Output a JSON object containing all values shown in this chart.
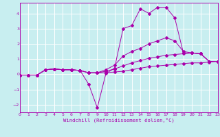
{
  "xlabel": "Windchill (Refroidissement éolien,°C)",
  "bg_color": "#c8eef0",
  "grid_color": "#ffffff",
  "line_color": "#aa00aa",
  "text_color": "#aa00aa",
  "xlim": [
    0,
    23
  ],
  "ylim": [
    -2.5,
    4.7
  ],
  "xticks": [
    0,
    1,
    2,
    3,
    4,
    5,
    6,
    7,
    8,
    9,
    10,
    11,
    12,
    13,
    14,
    15,
    16,
    17,
    18,
    19,
    20,
    21,
    22,
    23
  ],
  "yticks": [
    -2,
    -1,
    0,
    1,
    2,
    3,
    4
  ],
  "series": {
    "line1": {
      "x": [
        0,
        1,
        2,
        3,
        4,
        5,
        6,
        7,
        8,
        9,
        10,
        11,
        12,
        13,
        14,
        15,
        16,
        17,
        18,
        19,
        20,
        21,
        22,
        23
      ],
      "y": [
        -0.05,
        -0.05,
        -0.05,
        0.3,
        0.35,
        0.3,
        0.3,
        0.25,
        -0.65,
        -2.2,
        0.05,
        0.4,
        3.0,
        3.2,
        4.3,
        4.0,
        4.4,
        4.4,
        3.7,
        1.4,
        1.4,
        1.35,
        0.85,
        0.85
      ]
    },
    "line2": {
      "x": [
        0,
        1,
        2,
        3,
        4,
        5,
        6,
        7,
        8,
        9,
        10,
        11,
        12,
        13,
        14,
        15,
        16,
        17,
        18,
        19,
        20,
        21,
        22,
        23
      ],
      "y": [
        -0.05,
        -0.05,
        -0.05,
        0.3,
        0.35,
        0.3,
        0.3,
        0.25,
        0.1,
        0.1,
        0.3,
        0.6,
        1.2,
        1.5,
        1.7,
        2.0,
        2.2,
        2.4,
        2.2,
        1.5,
        1.4,
        1.35,
        0.85,
        0.85
      ]
    },
    "line3": {
      "x": [
        0,
        1,
        2,
        3,
        4,
        5,
        6,
        7,
        8,
        9,
        10,
        11,
        12,
        13,
        14,
        15,
        16,
        17,
        18,
        19,
        20,
        21,
        22,
        23
      ],
      "y": [
        -0.05,
        -0.05,
        -0.05,
        0.3,
        0.35,
        0.3,
        0.3,
        0.25,
        0.1,
        0.1,
        0.2,
        0.35,
        0.55,
        0.75,
        0.9,
        1.05,
        1.15,
        1.25,
        1.3,
        1.35,
        1.4,
        1.35,
        0.85,
        0.85
      ]
    },
    "line4": {
      "x": [
        0,
        1,
        2,
        3,
        4,
        5,
        6,
        7,
        8,
        9,
        10,
        11,
        12,
        13,
        14,
        15,
        16,
        17,
        18,
        19,
        20,
        21,
        22,
        23
      ],
      "y": [
        -0.05,
        -0.05,
        -0.05,
        0.3,
        0.35,
        0.3,
        0.3,
        0.25,
        0.1,
        0.1,
        0.1,
        0.15,
        0.2,
        0.3,
        0.4,
        0.5,
        0.55,
        0.6,
        0.65,
        0.7,
        0.75,
        0.75,
        0.8,
        0.85
      ]
    }
  }
}
